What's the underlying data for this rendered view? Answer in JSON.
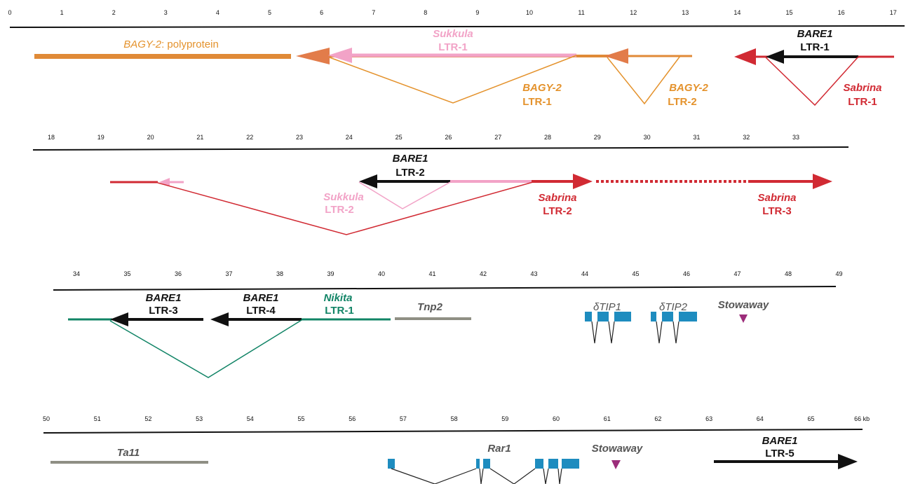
{
  "colors": {
    "bagy": "#e08a37",
    "bagy_arrow": "#e27c4a",
    "bagy_label": "#e4922c",
    "sukkula": "#f2a3c7",
    "sabrina": "#d12a33",
    "bare": "#111111",
    "nikita": "#118466",
    "gene": "#1e8cbf",
    "gray": "#8f8f84",
    "stowaway": "#9c2d7a"
  },
  "rows": [
    {
      "ticks": [
        "0",
        "1",
        "2",
        "3",
        "4",
        "5",
        "6",
        "7",
        "8",
        "9",
        "10",
        "11",
        "12",
        "13",
        "14",
        "15",
        "16",
        "17"
      ]
    },
    {
      "ticks": [
        "18",
        "19",
        "20",
        "21",
        "22",
        "23",
        "24",
        "25",
        "26",
        "27",
        "28",
        "29",
        "30",
        "31",
        "32",
        "33"
      ]
    },
    {
      "ticks": [
        "34",
        "35",
        "36",
        "37",
        "38",
        "39",
        "40",
        "41",
        "42",
        "43",
        "44",
        "45",
        "46",
        "47",
        "48",
        "49"
      ]
    },
    {
      "ticks": [
        "50",
        "51",
        "52",
        "53",
        "54",
        "55",
        "56",
        "57",
        "58",
        "59",
        "60",
        "61",
        "62",
        "63",
        "64",
        "65",
        "66 kb"
      ]
    }
  ],
  "labels": {
    "bagy2_polyprotein_name": "BAGY-2",
    "bagy2_polyprotein_suffix": ": polyprotein",
    "sukkula_ltr1_name": "Sukkula",
    "sukkula_ltr1_ltr": "LTR-1",
    "bagy2_ltr1_name": "BAGY-2",
    "bagy2_ltr1_ltr": "LTR-1",
    "bagy2_ltr2_name": "BAGY-2",
    "bagy2_ltr2_ltr": "LTR-2",
    "bare1_ltr1_name": "BARE1",
    "bare1_ltr1_ltr": "LTR-1",
    "sabrina_ltr1_name": "Sabrina",
    "sabrina_ltr1_ltr": "LTR-1",
    "bare1_ltr2_name": "BARE1",
    "bare1_ltr2_ltr": "LTR-2",
    "sukkula_ltr2_name": "Sukkula",
    "sukkula_ltr2_ltr": "LTR-2",
    "sabrina_ltr2_name": "Sabrina",
    "sabrina_ltr2_ltr": "LTR-2",
    "sabrina_ltr3_name": "Sabrina",
    "sabrina_ltr3_ltr": "LTR-3",
    "bare1_ltr3_name": "BARE1",
    "bare1_ltr3_ltr": "LTR-3",
    "bare1_ltr4_name": "BARE1",
    "bare1_ltr4_ltr": "LTR-4",
    "nikita_ltr1_name": "Nikita",
    "nikita_ltr1_ltr": "LTR-1",
    "tnp2": "Tnp2",
    "dtip1": "δTIP1",
    "dtip2": "δTIP2",
    "stowaway_1": "Stowaway",
    "ta11": "Ta11",
    "rar1": "Rar1",
    "stowaway_2": "Stowaway",
    "bare1_ltr5_name": "BARE1",
    "bare1_ltr5_ltr": "LTR-5"
  }
}
